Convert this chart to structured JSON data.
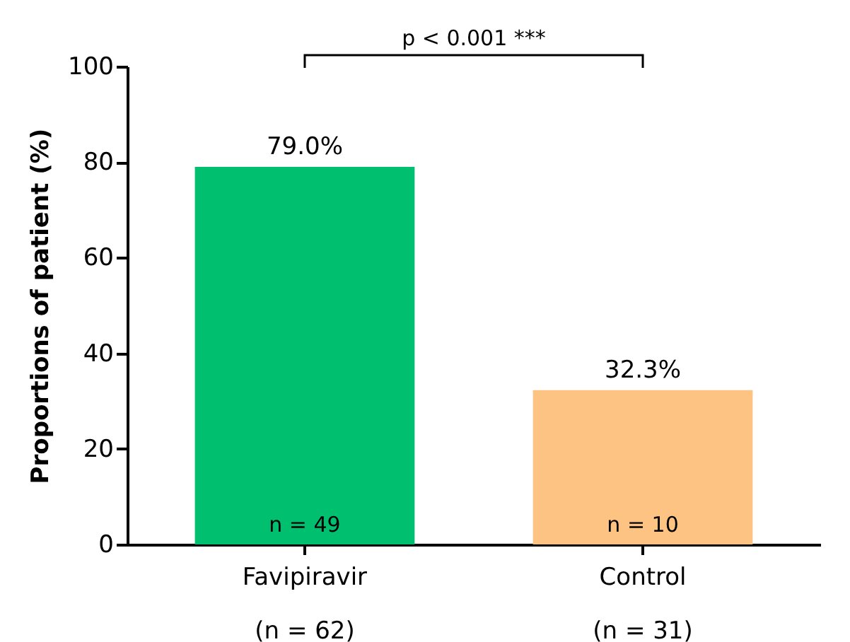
{
  "chart_data": {
    "type": "bar",
    "ylabel": "Proportions of patient (%)",
    "categories": [
      "Favipiravir\n(n = 62)",
      "Control\n(n = 31)"
    ],
    "values": [
      79.0,
      32.3
    ],
    "colors": [
      "#00c070",
      "#fdc382"
    ],
    "value_labels": [
      "79.0%",
      "32.3%"
    ],
    "ylim": [
      0,
      100
    ],
    "yticks": [
      0,
      20,
      40,
      60,
      80,
      100
    ],
    "grid": false,
    "annotations": [
      "p < 0.001 ***",
      "n = 49",
      "n = 10"
    ]
  }
}
